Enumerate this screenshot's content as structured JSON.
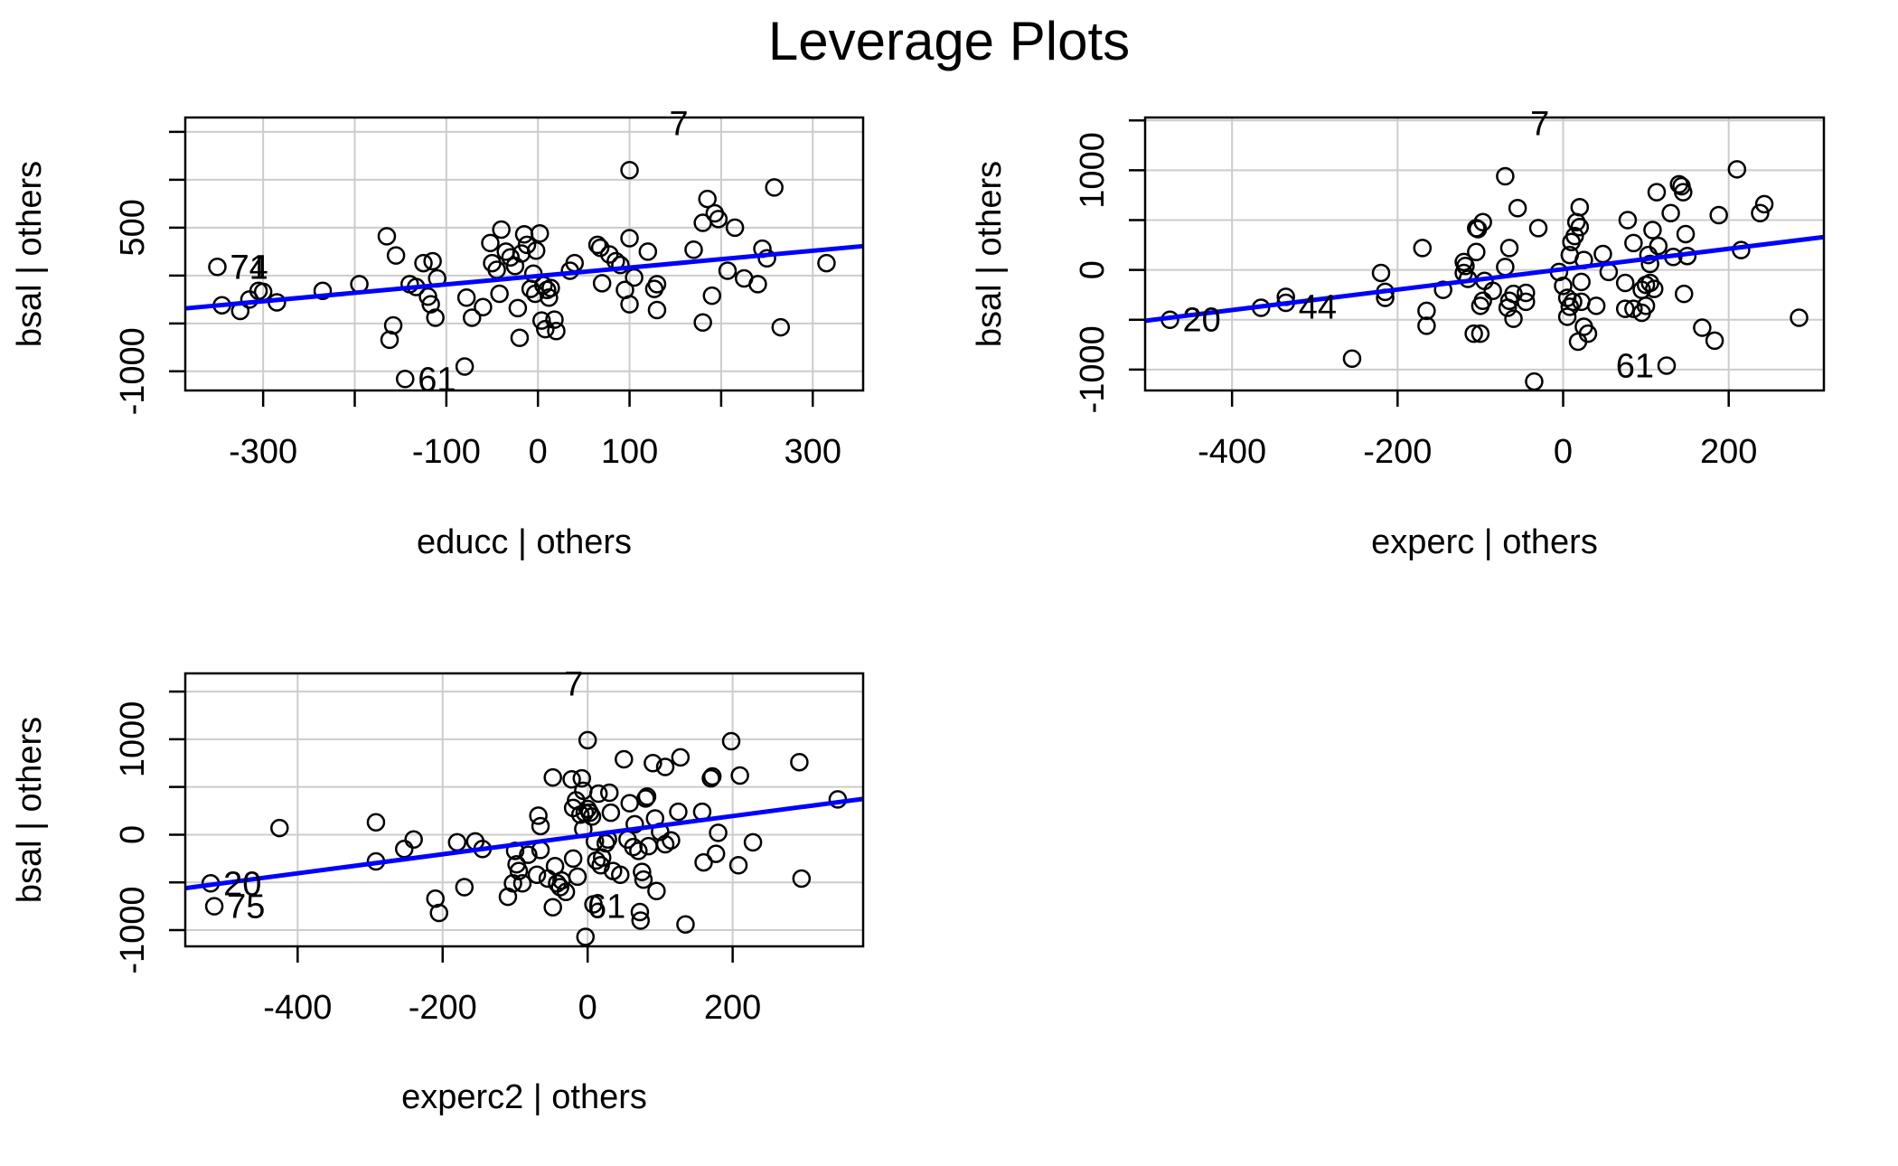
{
  "title": "Leverage Plots",
  "colors": {
    "fit_line": "#0000ff",
    "grid": "#cccccc",
    "axis": "#000000",
    "points": "#000000"
  },
  "chart_data": [
    {
      "type": "scatter",
      "xlabel": "educc | others",
      "ylabel": "bsal | others",
      "xlim": [
        -385,
        355
      ],
      "ylim": [
        -1200,
        1650
      ],
      "xticks": [
        -300,
        -200,
        -100,
        0,
        100,
        200,
        300
      ],
      "xtick_labels": [
        "-300",
        "",
        "-100",
        "0",
        "100",
        "",
        "300"
      ],
      "yticks": [
        -1000,
        -500,
        0,
        500,
        1000,
        1500
      ],
      "ytick_labels": [
        "-1000",
        "",
        "",
        "500",
        "",
        ""
      ],
      "grid": true,
      "fit_line": {
        "x": [
          -385,
          355
        ],
        "y": [
          -343,
          307
        ]
      },
      "labeled_points": [
        {
          "label": "7",
          "x": 178,
          "y": 1590
        },
        {
          "label": "61",
          "x": -145,
          "y": -1080
        },
        {
          "label": "74",
          "x": -350,
          "y": 90
        },
        {
          "label": "71",
          "x": -350,
          "y": 90
        }
      ],
      "points": [
        [
          -350,
          90
        ],
        [
          -345,
          -310
        ],
        [
          -325,
          -370
        ],
        [
          -315,
          -250
        ],
        [
          -305,
          -160
        ],
        [
          -300,
          -170
        ],
        [
          -285,
          -280
        ],
        [
          -235,
          -160
        ],
        [
          -195,
          -90
        ],
        [
          -165,
          410
        ],
        [
          -162,
          -670
        ],
        [
          -158,
          -520
        ],
        [
          -155,
          210
        ],
        [
          -145,
          -1080
        ],
        [
          -140,
          -90
        ],
        [
          -133,
          -120
        ],
        [
          -125,
          130
        ],
        [
          -120,
          -220
        ],
        [
          -117,
          -300
        ],
        [
          -115,
          150
        ],
        [
          -112,
          -440
        ],
        [
          -110,
          -30
        ],
        [
          -80,
          -950
        ],
        [
          -78,
          -230
        ],
        [
          -72,
          -440
        ],
        [
          -60,
          -330
        ],
        [
          -52,
          340
        ],
        [
          -50,
          130
        ],
        [
          -45,
          60
        ],
        [
          -42,
          -190
        ],
        [
          -40,
          480
        ],
        [
          -35,
          250
        ],
        [
          -30,
          190
        ],
        [
          -25,
          100
        ],
        [
          -22,
          -340
        ],
        [
          -20,
          -650
        ],
        [
          -18,
          230
        ],
        [
          -15,
          430
        ],
        [
          -12,
          320
        ],
        [
          -8,
          -140
        ],
        [
          -5,
          20
        ],
        [
          -3,
          -190
        ],
        [
          -2,
          260
        ],
        [
          2,
          440
        ],
        [
          4,
          -470
        ],
        [
          6,
          -100
        ],
        [
          8,
          -560
        ],
        [
          10,
          -150
        ],
        [
          12,
          -230
        ],
        [
          14,
          -130
        ],
        [
          18,
          -460
        ],
        [
          20,
          -580
        ],
        [
          35,
          50
        ],
        [
          40,
          130
        ],
        [
          65,
          320
        ],
        [
          68,
          290
        ],
        [
          70,
          -80
        ],
        [
          78,
          220
        ],
        [
          85,
          150
        ],
        [
          90,
          110
        ],
        [
          95,
          -150
        ],
        [
          100,
          -300
        ],
        [
          100,
          390
        ],
        [
          100,
          1100
        ],
        [
          105,
          -20
        ],
        [
          120,
          250
        ],
        [
          127,
          -140
        ],
        [
          130,
          -360
        ],
        [
          130,
          -90
        ],
        [
          170,
          270
        ],
        [
          180,
          -490
        ],
        [
          180,
          550
        ],
        [
          185,
          800
        ],
        [
          190,
          -210
        ],
        [
          193,
          650
        ],
        [
          197,
          590
        ],
        [
          207,
          50
        ],
        [
          215,
          500
        ],
        [
          225,
          -30
        ],
        [
          240,
          -90
        ],
        [
          245,
          280
        ],
        [
          250,
          180
        ],
        [
          258,
          920
        ],
        [
          265,
          -540
        ],
        [
          315,
          130
        ]
      ]
    },
    {
      "type": "scatter",
      "xlabel": "experc | others",
      "ylabel": "bsal | others",
      "xlim": [
        -505,
        315
      ],
      "ylim": [
        -1210,
        1530
      ],
      "xticks": [
        -400,
        -200,
        0,
        200
      ],
      "xtick_labels": [
        "-400",
        "-200",
        "0",
        "200"
      ],
      "yticks": [
        -1000,
        -500,
        0,
        500,
        1000,
        1500
      ],
      "ytick_labels": [
        "-1000",
        "",
        "0",
        "",
        "1000",
        ""
      ],
      "grid": true,
      "fit_line": {
        "x": [
          -505,
          315
        ],
        "y": [
          -510,
          330
        ]
      },
      "labeled_points": [
        {
          "label": "7",
          "x": -55,
          "y": 1470
        },
        {
          "label": "20",
          "x": -475,
          "y": -500
        },
        {
          "label": "44",
          "x": -335,
          "y": -370
        },
        {
          "label": "61",
          "x": 125,
          "y": -960
        }
      ],
      "points": [
        [
          -475,
          -500
        ],
        [
          -365,
          -380
        ],
        [
          -335,
          -270
        ],
        [
          -335,
          -330
        ],
        [
          -255,
          -890
        ],
        [
          -220,
          -30
        ],
        [
          -215,
          -220
        ],
        [
          -215,
          -280
        ],
        [
          -170,
          220
        ],
        [
          -165,
          -410
        ],
        [
          -165,
          -560
        ],
        [
          -145,
          -200
        ],
        [
          -120,
          -30
        ],
        [
          -120,
          80
        ],
        [
          -118,
          40
        ],
        [
          -115,
          -90
        ],
        [
          -108,
          -640
        ],
        [
          -105,
          180
        ],
        [
          -105,
          420
        ],
        [
          -103,
          410
        ],
        [
          -100,
          -640
        ],
        [
          -100,
          -360
        ],
        [
          -97,
          -310
        ],
        [
          -97,
          480
        ],
        [
          -95,
          -110
        ],
        [
          -85,
          -210
        ],
        [
          -70,
          940
        ],
        [
          -70,
          30
        ],
        [
          -67,
          -380
        ],
        [
          -65,
          -310
        ],
        [
          -65,
          220
        ],
        [
          -60,
          -240
        ],
        [
          -60,
          -490
        ],
        [
          -55,
          620
        ],
        [
          -45,
          -320
        ],
        [
          -45,
          -230
        ],
        [
          -35,
          -1120
        ],
        [
          -30,
          420
        ],
        [
          -5,
          -20
        ],
        [
          0,
          -160
        ],
        [
          5,
          -280
        ],
        [
          5,
          -470
        ],
        [
          8,
          -370
        ],
        [
          8,
          150
        ],
        [
          10,
          280
        ],
        [
          12,
          -320
        ],
        [
          14,
          340
        ],
        [
          16,
          480
        ],
        [
          18,
          -720
        ],
        [
          20,
          630
        ],
        [
          20,
          430
        ],
        [
          22,
          -320
        ],
        [
          22,
          -120
        ],
        [
          25,
          100
        ],
        [
          25,
          -570
        ],
        [
          30,
          -640
        ],
        [
          40,
          -360
        ],
        [
          48,
          160
        ],
        [
          55,
          -20
        ],
        [
          75,
          -130
        ],
        [
          75,
          -390
        ],
        [
          78,
          500
        ],
        [
          85,
          -390
        ],
        [
          85,
          270
        ],
        [
          95,
          -200
        ],
        [
          95,
          -430
        ],
        [
          100,
          -150
        ],
        [
          100,
          -360
        ],
        [
          103,
          150
        ],
        [
          105,
          -130
        ],
        [
          105,
          60
        ],
        [
          108,
          400
        ],
        [
          110,
          -190
        ],
        [
          113,
          780
        ],
        [
          115,
          240
        ],
        [
          125,
          -960
        ],
        [
          130,
          570
        ],
        [
          133,
          130
        ],
        [
          140,
          860
        ],
        [
          143,
          840
        ],
        [
          145,
          780
        ],
        [
          146,
          -240
        ],
        [
          148,
          360
        ],
        [
          150,
          140
        ],
        [
          168,
          -580
        ],
        [
          183,
          -710
        ],
        [
          188,
          550
        ],
        [
          210,
          1010
        ],
        [
          215,
          200
        ],
        [
          238,
          570
        ],
        [
          243,
          660
        ],
        [
          285,
          -480
        ]
      ]
    },
    {
      "type": "scatter",
      "xlabel": "experc2 | others",
      "ylabel": "bsal | others",
      "xlim": [
        -555,
        380
      ],
      "ylim": [
        -1170,
        1690
      ],
      "xticks": [
        -400,
        -200,
        0,
        200
      ],
      "xtick_labels": [
        "-400",
        "-200",
        "0",
        "200"
      ],
      "yticks": [
        -1000,
        -500,
        0,
        500,
        1000,
        1500
      ],
      "ytick_labels": [
        "-1000",
        "",
        "0",
        "",
        "1000",
        ""
      ],
      "grid": true,
      "fit_line": {
        "x": [
          -555,
          380
        ],
        "y": [
          -560,
          375
        ]
      },
      "labeled_points": [
        {
          "label": "7",
          "x": -50,
          "y": 1580
        },
        {
          "label": "20",
          "x": -520,
          "y": -510
        },
        {
          "label": "75",
          "x": -515,
          "y": -750
        },
        {
          "label": "61",
          "x": 70,
          "y": -750
        }
      ],
      "points": [
        [
          -520,
          -510
        ],
        [
          -515,
          -750
        ],
        [
          -425,
          70
        ],
        [
          -292,
          -280
        ],
        [
          -292,
          130
        ],
        [
          -253,
          -150
        ],
        [
          -240,
          -50
        ],
        [
          -210,
          -670
        ],
        [
          -205,
          -820
        ],
        [
          -180,
          -80
        ],
        [
          -170,
          -550
        ],
        [
          -155,
          -70
        ],
        [
          -145,
          -150
        ],
        [
          -110,
          -650
        ],
        [
          -103,
          -510
        ],
        [
          -100,
          -170
        ],
        [
          -98,
          -310
        ],
        [
          -95,
          -380
        ],
        [
          -90,
          -510
        ],
        [
          -82,
          -210
        ],
        [
          -70,
          -420
        ],
        [
          -68,
          200
        ],
        [
          -65,
          -160
        ],
        [
          -65,
          90
        ],
        [
          -55,
          -460
        ],
        [
          -48,
          600
        ],
        [
          -48,
          -760
        ],
        [
          -45,
          -330
        ],
        [
          -42,
          -510
        ],
        [
          -38,
          -550
        ],
        [
          -36,
          -480
        ],
        [
          -30,
          -600
        ],
        [
          -22,
          580
        ],
        [
          -20,
          280
        ],
        [
          -20,
          -250
        ],
        [
          -16,
          360
        ],
        [
          -14,
          -440
        ],
        [
          -10,
          210
        ],
        [
          -8,
          590
        ],
        [
          -6,
          60
        ],
        [
          -6,
          460
        ],
        [
          -4,
          230
        ],
        [
          -3,
          -1070
        ],
        [
          0,
          990
        ],
        [
          0,
          270
        ],
        [
          3,
          230
        ],
        [
          6,
          190
        ],
        [
          8,
          -730
        ],
        [
          10,
          -70
        ],
        [
          12,
          -270
        ],
        [
          15,
          430
        ],
        [
          18,
          -320
        ],
        [
          20,
          -240
        ],
        [
          25,
          -90
        ],
        [
          28,
          -50
        ],
        [
          30,
          440
        ],
        [
          32,
          230
        ],
        [
          35,
          -380
        ],
        [
          45,
          -420
        ],
        [
          50,
          790
        ],
        [
          55,
          -50
        ],
        [
          58,
          330
        ],
        [
          63,
          -130
        ],
        [
          65,
          110
        ],
        [
          70,
          -170
        ],
        [
          72,
          -810
        ],
        [
          73,
          -900
        ],
        [
          75,
          -390
        ],
        [
          77,
          -470
        ],
        [
          80,
          380
        ],
        [
          82,
          400
        ],
        [
          84,
          -120
        ],
        [
          90,
          750
        ],
        [
          93,
          170
        ],
        [
          95,
          -590
        ],
        [
          100,
          30
        ],
        [
          107,
          -100
        ],
        [
          107,
          710
        ],
        [
          115,
          -60
        ],
        [
          125,
          240
        ],
        [
          128,
          810
        ],
        [
          135,
          -940
        ],
        [
          158,
          240
        ],
        [
          160,
          -290
        ],
        [
          170,
          590
        ],
        [
          172,
          610
        ],
        [
          177,
          -200
        ],
        [
          180,
          20
        ],
        [
          198,
          980
        ],
        [
          208,
          -320
        ],
        [
          210,
          620
        ],
        [
          228,
          -80
        ],
        [
          292,
          760
        ],
        [
          295,
          -460
        ],
        [
          345,
          370
        ]
      ]
    }
  ]
}
